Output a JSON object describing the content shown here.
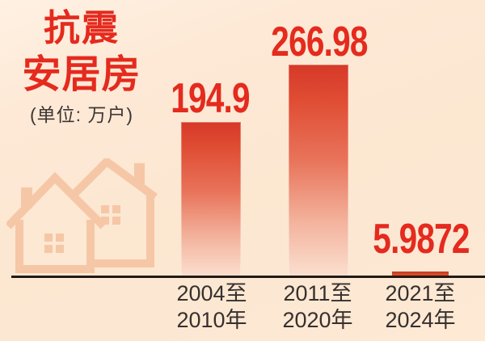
{
  "title": {
    "line1": "抗震",
    "line2": "安居房"
  },
  "unit_label": "(单位: 万户)",
  "chart_data": {
    "type": "bar",
    "title": "抗震安居房",
    "unit": "万户",
    "categories": [
      "2004至2010年",
      "2011至2020年",
      "2021至2024年"
    ],
    "category_lines": [
      {
        "l1": "2004至",
        "l2": "2010年"
      },
      {
        "l1": "2011至",
        "l2": "2020年"
      },
      {
        "l1": "2021至",
        "l2": "2024年"
      }
    ],
    "values": [
      194.9,
      266.98,
      5.9872
    ],
    "value_labels": [
      "194.9",
      "266.98",
      "5.9872"
    ],
    "ylim": [
      0,
      280
    ],
    "grid": false,
    "legend": "none",
    "axis_baseline": true
  },
  "colors": {
    "accent_red": "#e52a1e",
    "bar_top": "#d63928",
    "bar_bottom": "#fbdfcf",
    "background": "#fde8d3",
    "watermark": "#f6c7a6",
    "axis_line": "#231a14",
    "label_text": "#36302e"
  },
  "icons": {
    "watermark": "house-outlines-icon"
  }
}
